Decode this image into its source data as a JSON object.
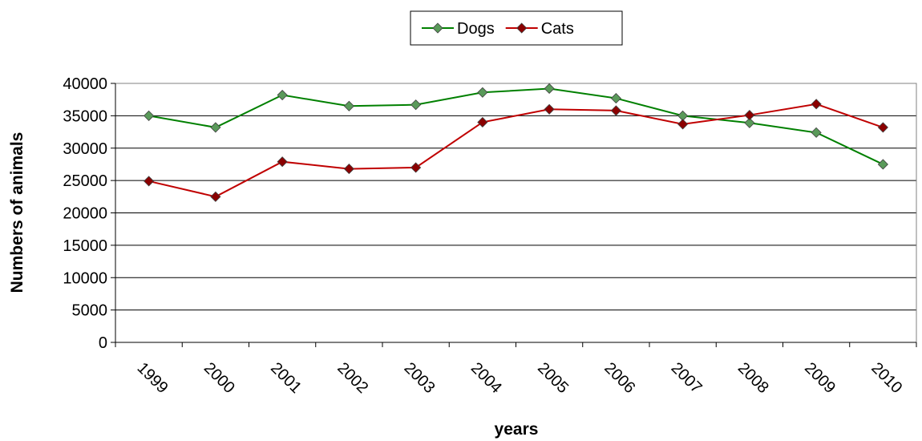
{
  "chart_data": {
    "type": "line",
    "x": [
      "1999",
      "2000",
      "2001",
      "2002",
      "2003",
      "2004",
      "2005",
      "2006",
      "2007",
      "2008",
      "2009",
      "2010"
    ],
    "xlabel": "years",
    "ylabel": "Numbers of animals",
    "ylim": [
      0,
      40000
    ],
    "yticks": [
      "0",
      "5000",
      "10000",
      "15000",
      "20000",
      "25000",
      "30000",
      "35000",
      "40000"
    ],
    "grid": "horizontal",
    "legend_position": "top-center",
    "series": [
      {
        "name": "Dogs",
        "color": "#008000",
        "marker_color": "#5a9a5a",
        "values": [
          35000,
          33200,
          38200,
          36500,
          36700,
          38600,
          39200,
          37700,
          35000,
          33900,
          32400,
          27500
        ]
      },
      {
        "name": "Cats",
        "color": "#c00000",
        "marker_color": "#8b0000",
        "values": [
          24900,
          22500,
          27900,
          26800,
          27000,
          34000,
          36000,
          35800,
          33700,
          35100,
          36800,
          33200
        ]
      }
    ]
  }
}
